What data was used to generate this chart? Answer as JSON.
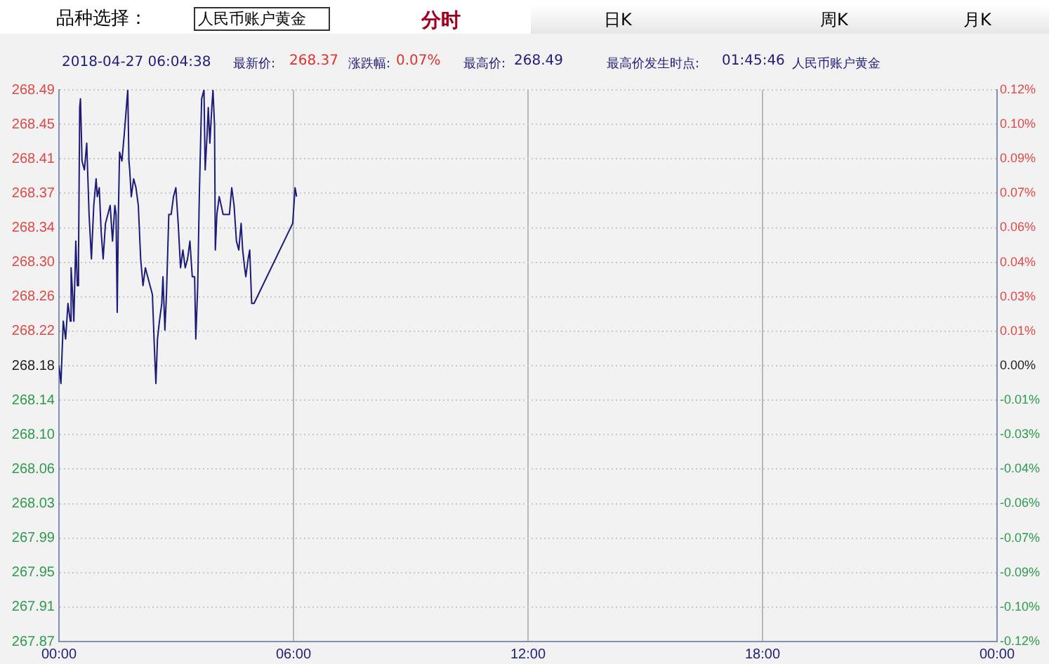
{
  "chart_data": {
    "type": "line",
    "annotations": [
      "品种选择：",
      "人民币账户黄金",
      "分时",
      "日K",
      "周K",
      "月K",
      "2018-04-27 06:04:38",
      "最新价:",
      "268.37",
      "涨跌幅:",
      "0.07%",
      "最高价:",
      "268.49",
      "最高价发生时点:",
      "01:45:46",
      "人民币账户黄金"
    ],
    "x": [
      0,
      0.05,
      0.11,
      0.17,
      0.23,
      0.29,
      0.31,
      0.35,
      0.38,
      0.43,
      0.47,
      0.5,
      0.53,
      0.55,
      0.59,
      0.65,
      0.71,
      0.77,
      0.83,
      0.89,
      0.95,
      0.98,
      1.03,
      1.08,
      1.13,
      1.19,
      1.25,
      1.31,
      1.37,
      1.43,
      1.46,
      1.49,
      1.52,
      1.55,
      1.61,
      1.67,
      1.76,
      1.79,
      1.81,
      1.85,
      1.91,
      1.97,
      2.03,
      2.09,
      2.15,
      2.21,
      2.27,
      2.33,
      2.39,
      2.45,
      2.48,
      2.52,
      2.57,
      2.63,
      2.66,
      2.71,
      2.75,
      2.81,
      2.87,
      2.93,
      2.99,
      3.05,
      3.11,
      3.17,
      3.23,
      3.29,
      3.35,
      3.41,
      3.47,
      3.5,
      3.55,
      3.59,
      3.65,
      3.71,
      3.74,
      3.79,
      3.82,
      3.86,
      3.91,
      3.94,
      3.98,
      4,
      4.04,
      4.1,
      4.15,
      4.2,
      4.24,
      4.36,
      4.42,
      4.48,
      4.54,
      4.6,
      4.66,
      4.7,
      4.75,
      4.78,
      4.84,
      4.88,
      4.93,
      4.99,
      5.98,
      6.04,
      6.08
    ],
    "series": [
      {
        "color": "#1c1c78",
        "values": [
          268.18,
          268.16,
          268.23,
          268.21,
          268.25,
          268.23,
          268.29,
          268.26,
          268.23,
          268.32,
          268.27,
          268.3,
          268.47,
          268.48,
          268.41,
          268.4,
          268.43,
          268.35,
          268.3,
          268.36,
          268.39,
          268.37,
          268.38,
          268.33,
          268.3,
          268.34,
          268.35,
          268.36,
          268.32,
          268.36,
          268.35,
          268.24,
          268.35,
          268.42,
          268.41,
          268.44,
          268.49,
          268.41,
          268.4,
          268.37,
          268.39,
          268.38,
          268.36,
          268.3,
          268.27,
          268.29,
          268.28,
          268.27,
          268.26,
          268.19,
          268.16,
          268.21,
          268.23,
          268.25,
          268.28,
          268.22,
          268.26,
          268.35,
          268.35,
          268.37,
          268.38,
          268.34,
          268.29,
          268.31,
          268.29,
          268.3,
          268.32,
          268.28,
          268.28,
          268.21,
          268.27,
          268.37,
          268.48,
          268.49,
          268.4,
          268.44,
          268.47,
          268.43,
          268.47,
          268.49,
          268.45,
          268.31,
          268.35,
          268.37,
          268.36,
          268.35,
          268.35,
          268.35,
          268.38,
          268.36,
          268.32,
          268.31,
          268.34,
          268.31,
          268.29,
          268.28,
          268.3,
          268.31,
          268.25,
          268.25,
          268.34,
          268.38,
          268.37
        ]
      }
    ],
    "xlim": [
      0,
      24
    ],
    "xticks": [
      {
        "value": 0,
        "label": "00:00"
      },
      {
        "value": 6,
        "label": "06:00"
      },
      {
        "value": 12,
        "label": "12:00"
      },
      {
        "value": 18,
        "label": "18:00"
      },
      {
        "value": 24,
        "label": "00:00"
      }
    ],
    "ylim": [
      267.87,
      268.49
    ],
    "yticks": [
      268.49,
      {
        "value": 268.45125,
        "label": "268.45"
      },
      {
        "value": 268.4125,
        "label": "268.41"
      },
      {
        "value": 268.37375,
        "label": "268.37"
      },
      {
        "value": 268.335,
        "label": "268.34"
      },
      {
        "value": 268.29625,
        "label": "268.30"
      },
      {
        "value": 268.2575,
        "label": "268.26"
      },
      {
        "value": 268.21875,
        "label": "268.22"
      },
      268.18,
      {
        "value": 268.14125,
        "label": "268.14"
      },
      {
        "value": 268.1025,
        "label": "268.10"
      },
      {
        "value": 268.06375,
        "label": "268.06"
      },
      {
        "value": 268.025,
        "label": "268.03"
      },
      {
        "value": 267.98625,
        "label": "267.99"
      },
      {
        "value": 267.9475,
        "label": "267.95"
      },
      {
        "value": 267.90875,
        "label": "267.91"
      },
      267.87
    ],
    "y2lim": [
      -0.1156,
      0.1156
    ],
    "y2ticks": [
      {
        "value": 0.1156,
        "label": "0.12%"
      },
      {
        "value": 0.10115,
        "label": "0.10%"
      },
      {
        "value": 0.0867,
        "label": "0.09%"
      },
      {
        "value": 0.07225,
        "label": "0.07%"
      },
      {
        "value": 0.0578,
        "label": "0.06%"
      },
      {
        "value": 0.04335,
        "label": "0.04%"
      },
      {
        "value": 0.0289,
        "label": "0.03%"
      },
      {
        "value": 0.01445,
        "label": "0.01%"
      },
      {
        "value": 0,
        "label": "0.00%"
      },
      {
        "value": -0.01445,
        "label": "-0.01%"
      },
      {
        "value": -0.0289,
        "label": "-0.03%"
      },
      {
        "value": -0.04335,
        "label": "-0.04%"
      },
      {
        "value": -0.0578,
        "label": "-0.06%"
      },
      {
        "value": -0.07225,
        "label": "-0.07%"
      },
      {
        "value": -0.0867,
        "label": "-0.09%"
      },
      {
        "value": -0.10115,
        "label": "-0.10%"
      },
      {
        "value": -0.1156,
        "label": "-0.12%"
      }
    ],
    "grid": true,
    "legend": false,
    "marker": "none",
    "line_style": "solid"
  }
}
